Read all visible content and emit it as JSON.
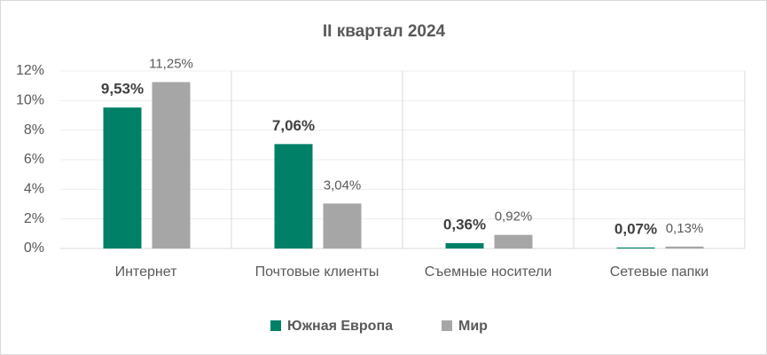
{
  "chart_data": {
    "type": "bar",
    "title": "II квартал 2024",
    "categories": [
      "Интернет",
      "Почтовые клиенты",
      "Съемные носители",
      "Сетевые папки"
    ],
    "series": [
      {
        "name": "Южная Европа",
        "color": "#008066",
        "values": [
          9.53,
          7.06,
          0.36,
          0.07
        ],
        "value_labels": [
          "9,53%",
          "7,06%",
          "0,36%",
          "0,07%"
        ]
      },
      {
        "name": "Мир",
        "color": "#a6a6a6",
        "values": [
          11.25,
          3.04,
          0.92,
          0.13
        ],
        "value_labels": [
          "11,25%",
          "3,04%",
          "0,92%",
          "0,13%"
        ]
      }
    ],
    "ylim": [
      0,
      12
    ],
    "yticks": [
      {
        "value": 0,
        "label": "0%"
      },
      {
        "value": 2,
        "label": "2%"
      },
      {
        "value": 4,
        "label": "4%"
      },
      {
        "value": 6,
        "label": "6%"
      },
      {
        "value": 8,
        "label": "8%"
      },
      {
        "value": 10,
        "label": "10%"
      },
      {
        "value": 12,
        "label": "12%"
      }
    ],
    "grid": true,
    "legend": "bottom"
  }
}
